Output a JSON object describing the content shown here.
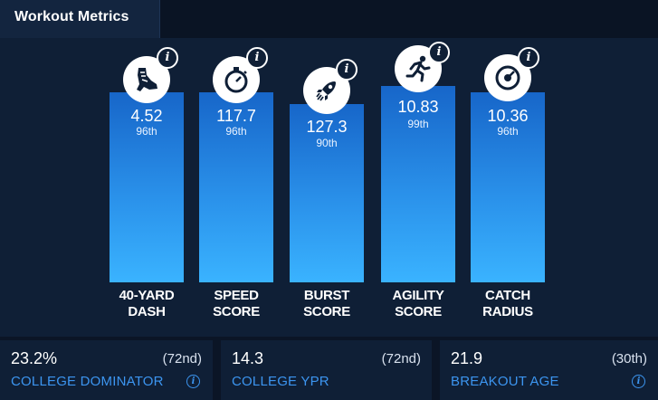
{
  "header": {
    "title": "Workout Metrics"
  },
  "colors": {
    "background": "#0b1526",
    "panel": "#0f1f36",
    "bar_top": "#1766c9",
    "bar_bottom": "#3ab3ff",
    "accent_label": "#3c95f0"
  },
  "chart_data": {
    "type": "bar",
    "categories": [
      "40-YARD DASH",
      "SPEED SCORE",
      "BURST SCORE",
      "AGILITY SCORE",
      "CATCH RADIUS"
    ],
    "values": [
      4.52,
      117.7,
      127.3,
      10.83,
      10.36
    ],
    "percentiles": [
      "96th",
      "96th",
      "90th",
      "99th",
      "96th"
    ],
    "bar_fill_percentile": [
      96,
      96,
      90,
      99,
      96
    ]
  },
  "metrics": [
    {
      "label_line1": "40-YARD",
      "label_line2": "DASH",
      "value": "4.52",
      "percentile": "96th",
      "icon": "sprint-shoe-icon",
      "info": "i"
    },
    {
      "label_line1": "SPEED",
      "label_line2": "SCORE",
      "value": "117.7",
      "percentile": "96th",
      "icon": "stopwatch-icon",
      "info": "i"
    },
    {
      "label_line1": "BURST",
      "label_line2": "SCORE",
      "value": "127.3",
      "percentile": "90th",
      "icon": "rocket-icon",
      "info": "i"
    },
    {
      "label_line1": "AGILITY",
      "label_line2": "SCORE",
      "value": "10.83",
      "percentile": "99th",
      "icon": "running-man-icon",
      "info": "i"
    },
    {
      "label_line1": "CATCH",
      "label_line2": "RADIUS",
      "value": "10.36",
      "percentile": "96th",
      "icon": "target-dial-icon",
      "info": "i"
    }
  ],
  "cards": [
    {
      "value": "23.2%",
      "rank": "(72nd)",
      "label": "COLLEGE DOMINATOR",
      "info": "i"
    },
    {
      "value": "14.3",
      "rank": "(72nd)",
      "label": "COLLEGE YPR"
    },
    {
      "value": "21.9",
      "rank": "(30th)",
      "label": "BREAKOUT AGE",
      "info": "i"
    }
  ]
}
